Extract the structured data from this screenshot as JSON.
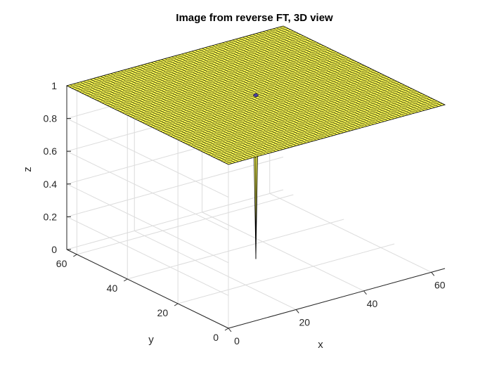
{
  "chart_data": {
    "type": "surface3d",
    "title": "Image from reverse FT, 3D view",
    "xlabel": "x",
    "ylabel": "y",
    "zlabel": "z",
    "x_ticks": [
      "0",
      "20",
      "40",
      "60"
    ],
    "y_ticks": [
      "0",
      "20",
      "40",
      "60"
    ],
    "z_ticks": [
      "0",
      "0.2",
      "0.4",
      "0.6",
      "0.8",
      "1"
    ],
    "xlim": [
      0,
      64
    ],
    "ylim": [
      0,
      64
    ],
    "zlim": [
      0,
      1
    ],
    "grid": true,
    "surface": {
      "grid_size": 64,
      "base_value": 1,
      "dip": {
        "x": 32,
        "y": 32,
        "z": 0
      },
      "face_color": "#ffff55",
      "edge_color": "#000000",
      "dip_marker_color": "#4a3fa0"
    }
  }
}
